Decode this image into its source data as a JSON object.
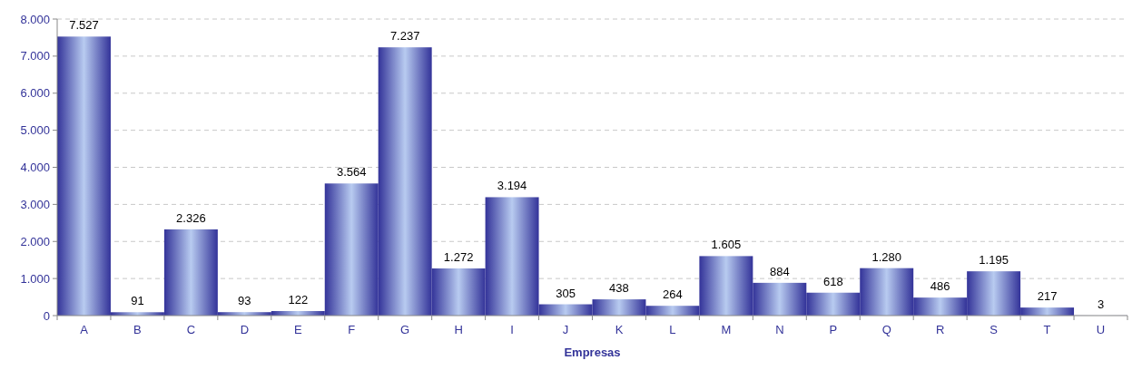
{
  "chart_data": {
    "type": "bar",
    "xlabel": "Empresas",
    "categories": [
      "A",
      "B",
      "C",
      "D",
      "E",
      "F",
      "G",
      "H",
      "I",
      "J",
      "K",
      "L",
      "M",
      "N",
      "P",
      "Q",
      "R",
      "S",
      "T",
      "U"
    ],
    "values": [
      7527,
      91,
      2326,
      93,
      122,
      3564,
      7237,
      1272,
      3194,
      305,
      438,
      264,
      1605,
      884,
      618,
      1280,
      486,
      1195,
      217,
      3
    ],
    "value_labels": [
      "7.527",
      "91",
      "2.326",
      "93",
      "122",
      "3.564",
      "7.237",
      "1.272",
      "3.194",
      "305",
      "438",
      "264",
      "1.605",
      "884",
      "618",
      "1.280",
      "486",
      "1.195",
      "217",
      "3"
    ],
    "color": "#333399",
    "ylim": [
      0,
      8000
    ],
    "yticks": [
      {
        "value": 0,
        "label": "0"
      },
      {
        "value": 1000,
        "label": "1.000"
      },
      {
        "value": 2000,
        "label": "2.000"
      },
      {
        "value": 3000,
        "label": "3.000"
      },
      {
        "value": 4000,
        "label": "4.000"
      },
      {
        "value": 5000,
        "label": "5.000"
      },
      {
        "value": 6000,
        "label": "6.000"
      },
      {
        "value": 7000,
        "label": "7.000"
      },
      {
        "value": 8000,
        "label": "8.000"
      }
    ],
    "grid": "y"
  }
}
